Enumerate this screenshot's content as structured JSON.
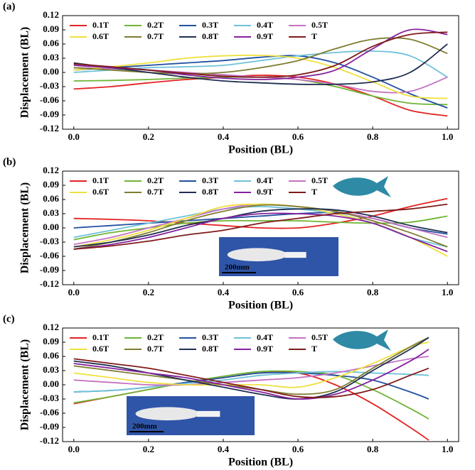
{
  "chart_data": [
    {
      "type": "line",
      "panel_label": "(a)",
      "x_label": "Position (BL)",
      "y_label": "Displacement (BL)",
      "xlim": [
        -0.03,
        1.03
      ],
      "ylim": [
        -0.12,
        0.12
      ],
      "xticks": [
        {
          "value": 0,
          "label": "0.0"
        },
        0.2,
        0.4,
        0.6,
        0.8,
        {
          "value": 1,
          "label": "1.0"
        }
      ],
      "yticks": [
        -0.12,
        -0.09,
        -0.06,
        -0.03,
        {
          "value": 0,
          "label": "0.00"
        },
        0.03,
        0.06,
        0.09,
        0.12
      ],
      "x": [
        0,
        0.1,
        0.2,
        0.3,
        0.4,
        0.5,
        0.6,
        0.7,
        0.8,
        0.9,
        1.0
      ],
      "series": [
        {
          "name": "0.1T",
          "color": "#e32222",
          "values": [
            -0.035,
            -0.03,
            -0.022,
            -0.015,
            -0.01,
            -0.006,
            -0.01,
            -0.025,
            -0.05,
            -0.08,
            -0.092
          ]
        },
        {
          "name": "0.2T",
          "color": "#6fb434",
          "values": [
            -0.018,
            -0.017,
            -0.015,
            -0.012,
            -0.01,
            -0.01,
            -0.015,
            -0.03,
            -0.05,
            -0.065,
            -0.068
          ]
        },
        {
          "name": "0.3T",
          "color": "#23509f",
          "values": [
            0.005,
            0.01,
            0.015,
            0.02,
            0.025,
            0.032,
            0.035,
            0.02,
            -0.01,
            -0.045,
            -0.075
          ]
        },
        {
          "name": "0.4T",
          "color": "#6ec1d9",
          "values": [
            0.0,
            0.005,
            0.01,
            0.012,
            0.015,
            0.025,
            0.035,
            0.042,
            0.045,
            0.035,
            -0.01
          ]
        },
        {
          "name": "0.5T",
          "color": "#c472c2",
          "values": [
            0.01,
            0.008,
            0.005,
            0.0,
            -0.005,
            -0.01,
            -0.015,
            -0.025,
            -0.04,
            -0.04,
            -0.01
          ]
        },
        {
          "name": "0.6T",
          "color": "#efe03f",
          "values": [
            0.005,
            0.012,
            0.02,
            0.03,
            0.035,
            0.036,
            0.03,
            0.01,
            -0.02,
            -0.05,
            -0.055
          ]
        },
        {
          "name": "0.7T",
          "color": "#7f7d31",
          "values": [
            0.01,
            0.005,
            0.0,
            -0.003,
            0.0,
            0.01,
            0.025,
            0.05,
            0.07,
            0.07,
            0.04
          ]
        },
        {
          "name": "0.8T",
          "color": "#1f2e51",
          "values": [
            0.02,
            0.01,
            0.0,
            -0.01,
            -0.018,
            -0.022,
            -0.025,
            -0.025,
            -0.02,
            0.0,
            0.06
          ]
        },
        {
          "name": "0.9T",
          "color": "#85209f",
          "values": [
            0.015,
            0.01,
            0.005,
            -0.005,
            -0.012,
            -0.015,
            -0.01,
            0.005,
            0.05,
            0.09,
            0.08
          ]
        },
        {
          "name": "T",
          "color": "#7f1a1a",
          "values": [
            0.018,
            0.012,
            0.005,
            -0.002,
            -0.008,
            -0.01,
            -0.005,
            0.015,
            0.055,
            0.08,
            0.085
          ]
        }
      ]
    },
    {
      "type": "line",
      "panel_label": "(b)",
      "x_label": "Position (BL)",
      "y_label": "Displacement (BL)",
      "inset_scale_label": "200mm",
      "xlim": [
        -0.03,
        1.03
      ],
      "ylim": [
        -0.12,
        0.12
      ],
      "xticks": [
        {
          "value": 0,
          "label": "0.0"
        },
        0.2,
        0.4,
        0.6,
        0.8,
        {
          "value": 1,
          "label": "1.0"
        }
      ],
      "yticks": [
        -0.12,
        -0.09,
        -0.06,
        -0.03,
        {
          "value": 0,
          "label": "0.00"
        },
        0.03,
        0.06,
        0.09,
        0.12
      ],
      "x": [
        0,
        0.1,
        0.2,
        0.3,
        0.4,
        0.5,
        0.6,
        0.7,
        0.8,
        0.9,
        1.0
      ],
      "series": [
        {
          "name": "0.1T",
          "color": "#e32222",
          "values": [
            0.02,
            0.018,
            0.015,
            0.01,
            0.005,
            0.0,
            0.0,
            0.01,
            0.025,
            0.045,
            0.062
          ]
        },
        {
          "name": "0.2T",
          "color": "#6fb434",
          "values": [
            -0.025,
            -0.01,
            0.0,
            0.01,
            0.015,
            0.015,
            0.015,
            0.012,
            0.01,
            0.012,
            0.025
          ]
        },
        {
          "name": "0.3T",
          "color": "#23509f",
          "values": [
            0.0,
            0.005,
            0.01,
            0.015,
            0.02,
            0.025,
            0.03,
            0.032,
            0.02,
            0.0,
            -0.013
          ]
        },
        {
          "name": "0.4T",
          "color": "#6ec1d9",
          "values": [
            -0.02,
            -0.005,
            0.01,
            0.025,
            0.04,
            0.045,
            0.04,
            0.03,
            0.01,
            -0.02,
            -0.04
          ]
        },
        {
          "name": "0.5T",
          "color": "#c472c2",
          "values": [
            -0.035,
            -0.02,
            0.0,
            0.02,
            0.04,
            0.05,
            0.045,
            0.035,
            0.02,
            0.0,
            -0.02
          ]
        },
        {
          "name": "0.6T",
          "color": "#efe03f",
          "values": [
            -0.04,
            -0.025,
            -0.005,
            0.02,
            0.045,
            0.05,
            0.045,
            0.03,
            0.01,
            -0.02,
            -0.06
          ]
        },
        {
          "name": "0.7T",
          "color": "#7f7d31",
          "values": [
            -0.045,
            -0.03,
            -0.01,
            0.015,
            0.035,
            0.048,
            0.045,
            0.035,
            0.015,
            -0.01,
            -0.04
          ]
        },
        {
          "name": "0.8T",
          "color": "#1f2e51",
          "values": [
            -0.04,
            -0.03,
            -0.015,
            0.005,
            0.02,
            0.035,
            0.04,
            0.038,
            0.025,
            0.005,
            -0.01
          ]
        },
        {
          "name": "0.9T",
          "color": "#85209f",
          "values": [
            -0.045,
            -0.035,
            -0.02,
            0.0,
            0.02,
            0.03,
            0.03,
            0.025,
            0.01,
            -0.02,
            -0.05
          ]
        },
        {
          "name": "T",
          "color": "#7f1a1a",
          "values": [
            -0.045,
            -0.038,
            -0.028,
            -0.015,
            -0.005,
            0.01,
            0.02,
            0.03,
            0.035,
            0.04,
            0.05
          ]
        }
      ]
    },
    {
      "type": "line",
      "panel_label": "(c)",
      "x_label": "Position (BL)",
      "y_label": "Displacement (BL)",
      "inset_scale_label": "200mm",
      "xlim": [
        -0.03,
        1.03
      ],
      "ylim": [
        -0.12,
        0.12
      ],
      "xticks": [
        {
          "value": 0,
          "label": "0.0"
        },
        0.2,
        0.4,
        0.6,
        0.8,
        {
          "value": 1,
          "label": "1.0"
        }
      ],
      "yticks": [
        -0.12,
        -0.09,
        -0.06,
        -0.03,
        {
          "value": 0,
          "label": "0.00"
        },
        0.03,
        0.06,
        0.09,
        0.12
      ],
      "x": [
        0,
        0.1,
        0.2,
        0.3,
        0.4,
        0.5,
        0.6,
        0.7,
        0.8,
        0.9,
        0.95
      ],
      "series": [
        {
          "name": "0.1T",
          "color": "#e32222",
          "values": [
            -0.04,
            -0.025,
            -0.01,
            0.005,
            0.015,
            0.025,
            0.025,
            0.0,
            -0.04,
            -0.09,
            -0.117
          ]
        },
        {
          "name": "0.2T",
          "color": "#6fb434",
          "values": [
            -0.038,
            -0.025,
            -0.01,
            0.005,
            0.018,
            0.028,
            0.028,
            0.02,
            -0.01,
            -0.05,
            -0.072
          ]
        },
        {
          "name": "0.3T",
          "color": "#23509f",
          "values": [
            -0.015,
            -0.012,
            -0.005,
            0.005,
            0.015,
            0.025,
            0.025,
            0.02,
            0.01,
            -0.015,
            -0.03
          ]
        },
        {
          "name": "0.4T",
          "color": "#6ec1d9",
          "values": [
            -0.015,
            -0.012,
            -0.005,
            0.003,
            0.01,
            0.02,
            0.025,
            0.028,
            0.025,
            0.022,
            0.02
          ]
        },
        {
          "name": "0.5T",
          "color": "#c472c2",
          "values": [
            0.01,
            0.005,
            0.0,
            0.0,
            0.005,
            0.01,
            0.015,
            0.025,
            0.04,
            0.055,
            0.06
          ]
        },
        {
          "name": "0.6T",
          "color": "#efe03f",
          "values": [
            0.025,
            0.015,
            0.005,
            0.0,
            0.0,
            0.0,
            -0.005,
            0.015,
            0.045,
            0.08,
            0.09
          ]
        },
        {
          "name": "0.7T",
          "color": "#7f7d31",
          "values": [
            0.04,
            0.03,
            0.02,
            0.01,
            0.0,
            -0.01,
            -0.02,
            -0.01,
            0.035,
            0.08,
            0.1
          ]
        },
        {
          "name": "0.8T",
          "color": "#1f2e51",
          "values": [
            0.05,
            0.04,
            0.025,
            0.01,
            -0.005,
            -0.02,
            -0.03,
            -0.015,
            0.03,
            0.075,
            0.1
          ]
        },
        {
          "name": "0.9T",
          "color": "#85209f",
          "values": [
            0.045,
            0.035,
            0.025,
            0.015,
            0.0,
            -0.015,
            -0.03,
            -0.02,
            0.01,
            0.05,
            0.075
          ]
        },
        {
          "name": "T",
          "color": "#7f1a1a",
          "values": [
            0.055,
            0.045,
            0.035,
            0.02,
            0.005,
            -0.01,
            -0.025,
            -0.025,
            -0.01,
            0.02,
            0.035
          ]
        }
      ]
    }
  ]
}
